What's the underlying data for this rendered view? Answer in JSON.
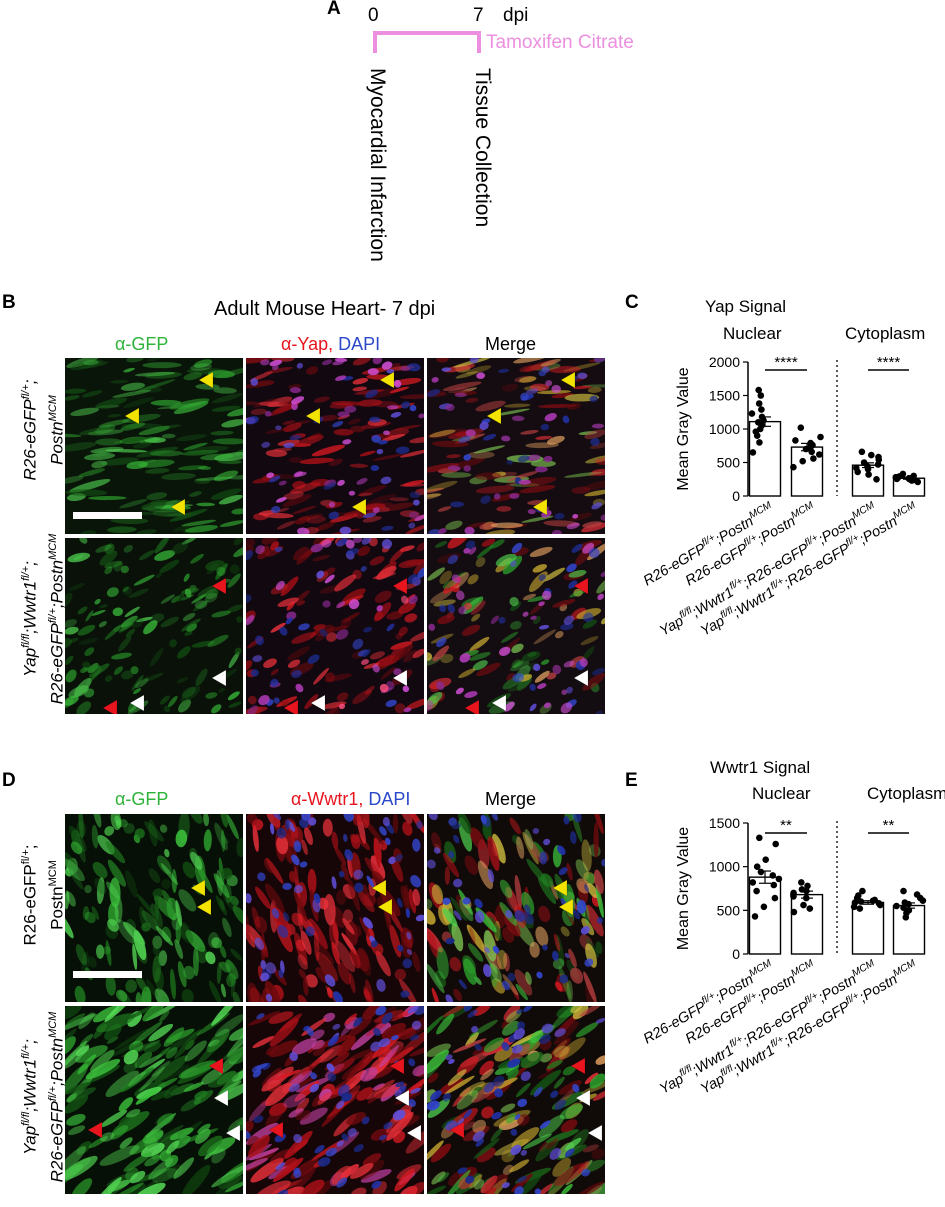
{
  "panel_a": {
    "label": "A",
    "tick_0": "0",
    "tick_7": "7",
    "unit": "dpi",
    "treatment": "Tamoxifen Citrate",
    "treatment_color": "#ec8fe0",
    "event_0": "Myocardial Infarction",
    "event_7": "Tissue Collection"
  },
  "panel_b": {
    "label": "B",
    "title": "Adult Mouse Heart- 7 dpi",
    "col_gfp": "α-GFP",
    "col_yap": "α-Yap,",
    "col_dapi": "DAPI",
    "col_merge": "Merge"
  },
  "panel_d": {
    "label": "D",
    "col_gfp": "α-GFP",
    "col_wwtr1": "α-Wwtr1,",
    "col_dapi": "DAPI",
    "col_merge": "Merge"
  },
  "row_labels": {
    "ctrl_line1": "R26-eGFP",
    "ctrl_line1_sup": "fl/+",
    "ctrl_line1_tail": ";",
    "ctrl_line2": "Postn",
    "ctrl_line2_sup": "MCM",
    "mut_line1_a": "Yap",
    "mut_line1_a_sup": "fl/fl",
    "mut_line1_b": ";Wwtr1",
    "mut_line1_b_sup": "fl/+",
    "mut_line1_tail": ";",
    "mut_line2_a": "R26-eGFP",
    "mut_line2_a_sup": "fl/+",
    "mut_line2_b": ";Postn",
    "mut_line2_b_sup": "MCM"
  },
  "colors": {
    "gfp_green": "#2fb33b",
    "yap_red": "#e8141e",
    "dapi_blue": "#2c49c9",
    "arrow_yellow": "#f2e400",
    "arrow_red": "#e8141e",
    "arrow_white": "#ffffff",
    "annot_purple": "#ec8fe0"
  },
  "category_labels": [
    {
      "pre": "R26-eGFP",
      "sup1": "fl/+",
      "mid": ";Postn",
      "sup2": "MCM"
    },
    {
      "pre": "R26-eGFP",
      "sup1": "fl/+",
      "mid": ";Postn",
      "sup2": "MCM"
    },
    {
      "pre": "Yap",
      "sup1": "fl/fl",
      "mid": ";Wwtr1",
      "sup2": "fl/+",
      "mid2": ";R26-eGFP",
      "sup3": "fl/+",
      "mid3": ";Postn",
      "sup4": "MCM"
    },
    {
      "pre": "Yap",
      "sup1": "fl/fl",
      "mid": ";Wwtr1",
      "sup2": "fl/+",
      "mid2": ";R26-eGFP",
      "sup3": "fl/+",
      "mid3": ";Postn",
      "sup4": "MCM"
    }
  ],
  "chart_data": [
    {
      "panel": "C",
      "type": "bar",
      "title": "Yap Signal",
      "group_labels": [
        "Nuclear",
        "Cytoplasm"
      ],
      "ylabel": "Mean Gray Value",
      "ylim": [
        0,
        2000
      ],
      "yticks": [
        0,
        500,
        1000,
        1500,
        2000
      ],
      "categories": [
        "R26-eGFPfl/+;PostnMCM",
        "R26-eGFPfl/+;PostnMCM",
        "Yapfl/fl;Wwtr1fl/+;R26-eGFPfl/+;PostnMCM",
        "Yapfl/fl;Wwtr1fl/+;R26-eGFPfl/+;PostnMCM"
      ],
      "values": [
        1110,
        730,
        460,
        265
      ],
      "errors": [
        70,
        55,
        35,
        15
      ],
      "points": [
        [
          1580,
          1500,
          1380,
          1290,
          1230,
          1180,
          1130,
          1100,
          1050,
          1000,
          960,
          900,
          800,
          650
        ],
        [
          1020,
          880,
          830,
          790,
          760,
          730,
          700,
          660,
          620,
          560,
          520,
          430
        ],
        [
          660,
          610,
          580,
          540,
          500,
          470,
          440,
          420,
          400,
          360,
          320,
          250
        ],
        [
          330,
          310,
          300,
          290,
          280,
          270,
          265,
          260,
          255,
          250,
          240,
          230,
          210
        ]
      ],
      "significance": [
        "****",
        "****"
      ]
    },
    {
      "panel": "E",
      "type": "bar",
      "title": "Wwtr1 Signal",
      "group_labels": [
        "Nuclear",
        "Cytoplasm"
      ],
      "ylabel": "Mean Gray Value",
      "ylim": [
        0,
        1500
      ],
      "yticks": [
        0,
        500,
        1000,
        1500
      ],
      "categories": [
        "R26-eGFPfl/+;PostnMCM",
        "R26-eGFPfl/+;PostnMCM",
        "Yapfl/fl;Wwtr1fl/+;R26-eGFPfl/+;PostnMCM",
        "Yapfl/fl;Wwtr1fl/+;R26-eGFPfl/+;PostnMCM"
      ],
      "values": [
        880,
        680,
        590,
        555
      ],
      "errors": [
        70,
        40,
        20,
        30
      ],
      "points": [
        [
          1330,
          1260,
          1080,
          1000,
          940,
          900,
          860,
          820,
          790,
          720,
          640,
          540,
          430
        ],
        [
          820,
          780,
          740,
          720,
          700,
          680,
          660,
          640,
          560,
          520,
          480
        ],
        [
          720,
          670,
          640,
          620,
          610,
          600,
          590,
          580,
          560,
          540,
          520
        ],
        [
          720,
          680,
          640,
          610,
          590,
          570,
          550,
          530,
          500,
          470,
          420
        ]
      ],
      "significance": [
        "**",
        "**"
      ]
    }
  ]
}
